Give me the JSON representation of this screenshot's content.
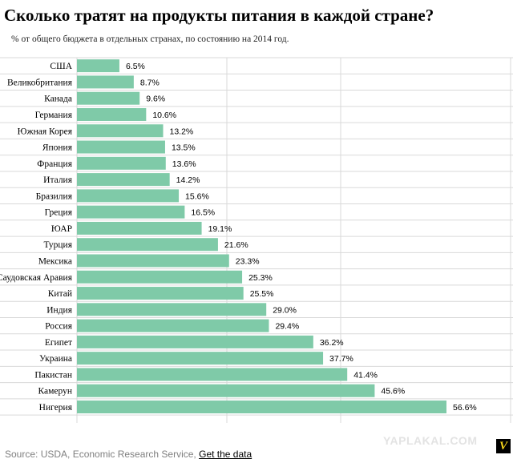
{
  "header": {
    "title": "Сколько тратят на продукты питания в каждой стране?",
    "subtitle": "% от общего бюджета в отдельных странах, по состоянию на 2014 год."
  },
  "chart_data": {
    "type": "bar",
    "orientation": "horizontal",
    "title": "Сколько тратят на продукты питания в каждой стране?",
    "subtitle": "% от общего бюджета в отдельных странах, по состоянию на 2014 год.",
    "categories": [
      "США",
      "Великобритания",
      "Канада",
      "Германия",
      "Южная Корея",
      "Япония",
      "Франция",
      "Италия",
      "Бразилия",
      "Греция",
      "ЮАР",
      "Турция",
      "Мексика",
      "Саудовская Аравия",
      "Китай",
      "Индия",
      "Россия",
      "Египет",
      "Украина",
      "Пакистан",
      "Камерун",
      "Нигерия"
    ],
    "values": [
      6.5,
      8.7,
      9.6,
      10.6,
      13.2,
      13.5,
      13.6,
      14.2,
      15.6,
      16.5,
      19.1,
      21.6,
      23.3,
      25.3,
      25.5,
      29.0,
      29.4,
      36.2,
      37.7,
      41.4,
      45.6,
      56.6
    ],
    "value_labels": [
      "6.5%",
      "8.7%",
      "9.6%",
      "10.6%",
      "13.2%",
      "13.5%",
      "13.6%",
      "14.2%",
      "15.6%",
      "16.5%",
      "19.1%",
      "21.6%",
      "23.3%",
      "25.3%",
      "25.5%",
      "29.0%",
      "29.4%",
      "36.2%",
      "37.7%",
      "41.4%",
      "45.6%",
      "56.6%"
    ],
    "xlim": [
      0,
      56.6
    ],
    "grid": true,
    "bar_color": "#7fcaa8",
    "grid_color": "#d9d9d9"
  },
  "footer": {
    "source": "Source: USDA, Economic Research Service,",
    "link": "Get the data"
  },
  "watermark": "YAPLAKAL.COM",
  "logo_letter": "V"
}
